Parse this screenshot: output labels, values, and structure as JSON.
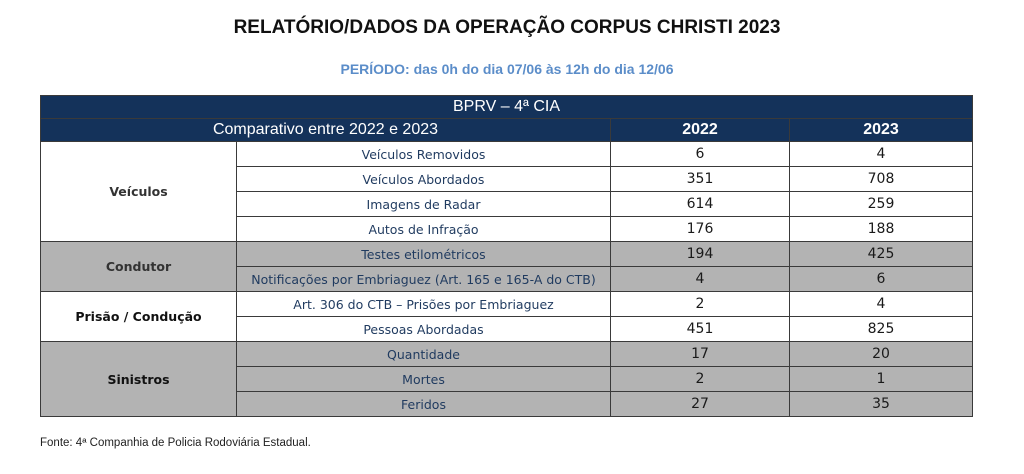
{
  "title": "RELATÓRIO/DADOS DA OPERAÇÃO CORPUS CHRISTI  2023",
  "period": "PERÍODO: das 0h do dia 07/06 às 12h do dia 12/06",
  "table": {
    "unit_header": "BPRV – 4ª CIA",
    "comparison_header": "Comparativo entre 2022 e 2023",
    "years": [
      "2022",
      "2023"
    ],
    "groups": [
      {
        "category": "Veículos",
        "rows": [
          {
            "label": "Veículos Removidos",
            "v2022": "6",
            "v2023": "4"
          },
          {
            "label": "Veículos Abordados",
            "v2022": "351",
            "v2023": "708"
          },
          {
            "label": "Imagens de Radar",
            "v2022": "614",
            "v2023": "259"
          },
          {
            "label": "Autos de Infração",
            "v2022": "176",
            "v2023": "188"
          }
        ]
      },
      {
        "category": "Condutor",
        "rows": [
          {
            "label": "Testes etilométricos",
            "v2022": "194",
            "v2023": "425"
          },
          {
            "label": "Notificações por Embriaguez (Art. 165 e 165-A do CTB)",
            "v2022": "4",
            "v2023": "6"
          }
        ]
      },
      {
        "category": "Prisão / Condução",
        "rows": [
          {
            "label": "Art. 306 do CTB – Prisões  por Embriaguez",
            "v2022": "2",
            "v2023": "4"
          },
          {
            "label": "Pessoas Abordadas",
            "v2022": "451",
            "v2023": "825"
          }
        ]
      },
      {
        "category": "Sinistros",
        "rows": [
          {
            "label": "Quantidade",
            "v2022": "17",
            "v2023": "20"
          },
          {
            "label": "Mortes",
            "v2022": "2",
            "v2023": "1"
          },
          {
            "label": "Feridos",
            "v2022": "27",
            "v2023": "35"
          }
        ]
      }
    ]
  },
  "source": "Fonte: 4ª Companhia de Policia Rodoviária Estadual.",
  "colors": {
    "header_bg": "#14325a",
    "period_text": "#5b8dc9",
    "band_gray": "#b3b3b3",
    "item_text": "#1f3a5f"
  }
}
